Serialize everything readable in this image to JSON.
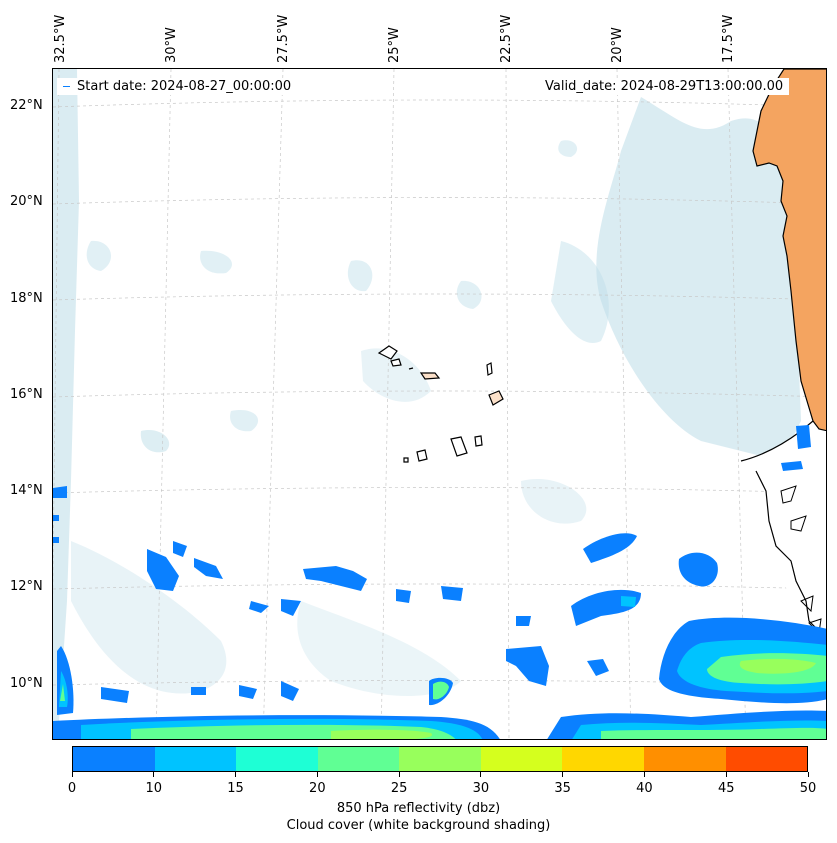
{
  "map": {
    "lon_labels": [
      "32.5°W",
      "30°W",
      "27.5°W",
      "25°W",
      "22.5°W",
      "20°W",
      "17.5°W"
    ],
    "lat_labels": [
      "22°N",
      "20°N",
      "18°N",
      "16°N",
      "14°N",
      "12°N",
      "10°N"
    ],
    "start_date_label": "Start date: 2024-08-27_00:00:00",
    "valid_date_label": "Valid_date: 2024-08-29T13:00:00.00",
    "land_color": "#f4a460",
    "coast_color": "#000000",
    "cloud_color": "#bcdde8",
    "grid": "on"
  },
  "colorbar": {
    "ticks": [
      "0",
      "10",
      "15",
      "20",
      "25",
      "30",
      "35",
      "40",
      "45",
      "50"
    ],
    "colors": [
      "#0a80ff",
      "#00c3ff",
      "#1effd5",
      "#60ff94",
      "#98ff5c",
      "#d5ff1e",
      "#ffd700",
      "#ff8f00",
      "#ff4c00"
    ],
    "title_line1": "850 hPa reflectivity (dbz)",
    "title_line2": "Cloud cover (white background shading)"
  }
}
